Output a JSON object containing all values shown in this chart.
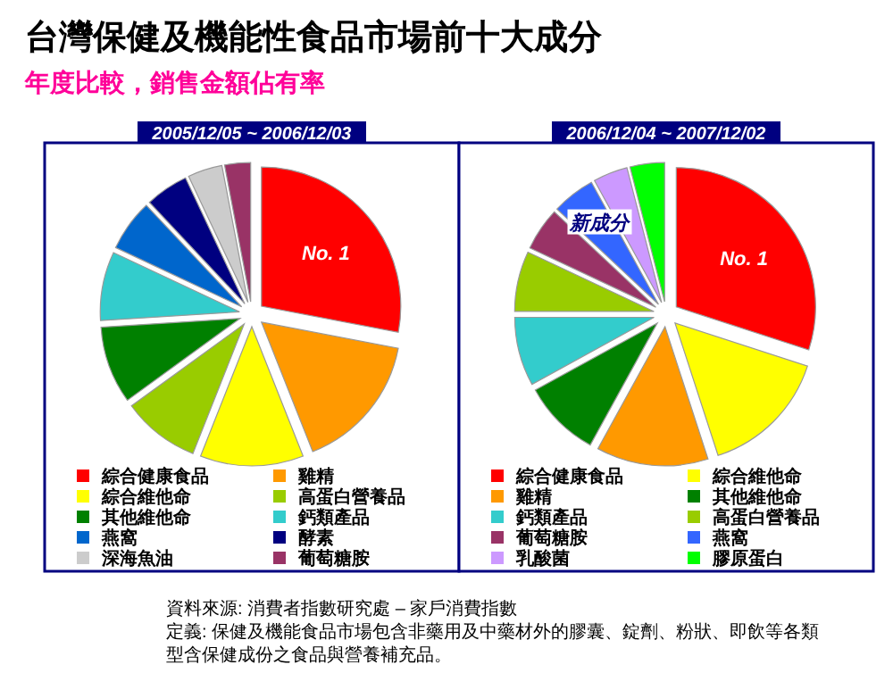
{
  "chart_data": [
    {
      "type": "other",
      "title": "台灣保健及機能性食品市場前十大成分",
      "subtitle": "年度比較，銷售金額佔有率",
      "annotations": [
        "資料來源: 消費者指數研究處 – 家戶消費指數",
        "定義: 保健及機能食品市場包含非藥用及中藥材外的膠囊、錠劑、粉狀、即飲等各類型含保健成份之食品與營養補充品。"
      ]
    },
    {
      "type": "pie",
      "title": "2005/12/05 ~ 2006/12/03",
      "categories": [
        "綜合健康食品",
        "雞精",
        "綜合維他命",
        "高蛋白營養品",
        "其他維他命",
        "鈣類產品",
        "燕窩",
        "酵素",
        "深海魚油",
        "葡萄糖胺"
      ],
      "values": [
        28,
        16,
        12,
        9,
        9,
        8,
        6,
        5,
        4,
        3
      ],
      "colors": [
        "#ff0000",
        "#ff9900",
        "#ffff00",
        "#99cc00",
        "#008000",
        "#33cccc",
        "#0066cc",
        "#000080",
        "#cccccc",
        "#993366"
      ],
      "annotations": [
        {
          "text": "No. 1",
          "x": "綜合健康食品"
        }
      ],
      "legend": "bottom"
    },
    {
      "type": "pie",
      "title": "2006/12/04 ~ 2007/12/02",
      "categories": [
        "綜合健康食品",
        "綜合維他命",
        "雞精",
        "其他維他命",
        "鈣類產品",
        "高蛋白營養品",
        "葡萄糖胺",
        "燕窩",
        "乳酸菌",
        "膠原蛋白"
      ],
      "values": [
        30,
        15,
        13,
        9,
        8,
        7,
        5,
        5,
        4,
        4
      ],
      "colors": [
        "#ff0000",
        "#ffff00",
        "#ff9900",
        "#008000",
        "#33cccc",
        "#99cc00",
        "#993366",
        "#3366ff",
        "#cc99ff",
        "#00ff00"
      ],
      "annotations": [
        {
          "text": "No. 1",
          "x": "綜合健康食品"
        },
        {
          "text": "新成分",
          "x": "乳酸菌"
        }
      ],
      "legend": "bottom"
    }
  ]
}
